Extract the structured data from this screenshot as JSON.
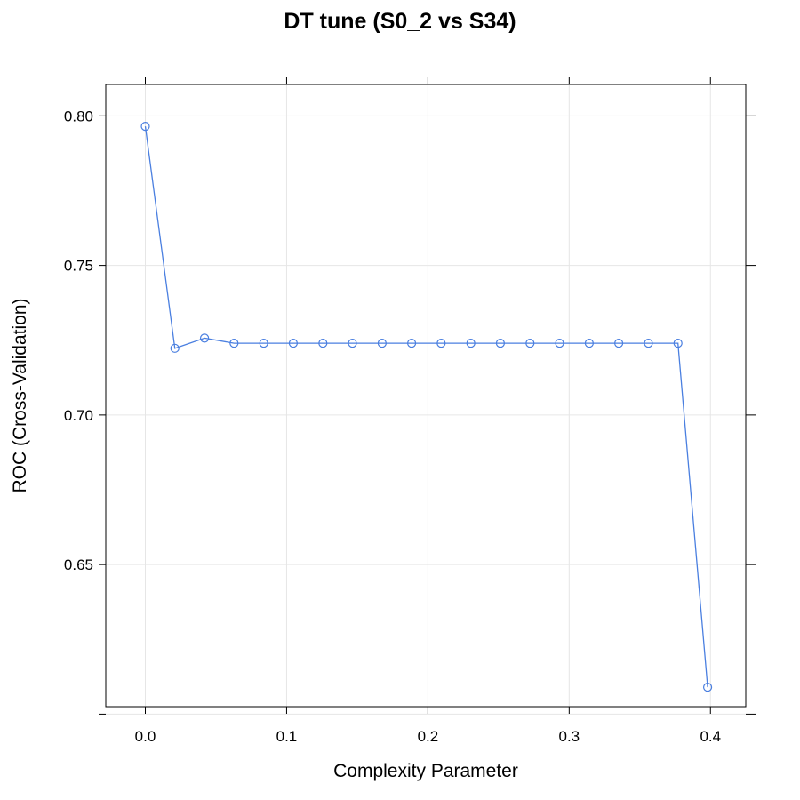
{
  "chart_data": {
    "type": "line",
    "title": "DT tune (S0_2 vs S34)",
    "xlabel": "Complexity Parameter",
    "ylabel": "ROC (Cross-Validation)",
    "xlim": [
      -0.028,
      0.425
    ],
    "ylim": [
      0.6025,
      0.8105
    ],
    "x_ticks": [
      0.0,
      0.1,
      0.2,
      0.3,
      0.4
    ],
    "x_tick_labels": [
      "0.0",
      "0.1",
      "0.2",
      "0.3",
      "0.4"
    ],
    "y_ticks": [
      0.8,
      0.75,
      0.7,
      0.65,
      0.6
    ],
    "y_tick_labels": [
      "0.80",
      "0.75",
      "0.70",
      "0.65",
      ""
    ],
    "grid": true,
    "series": [
      {
        "color": "#4a7fe0",
        "marker": "open-circle",
        "x": [
          0.0,
          0.0209,
          0.0419,
          0.0628,
          0.0838,
          0.1047,
          0.1257,
          0.1466,
          0.1676,
          0.1885,
          0.2094,
          0.2304,
          0.2513,
          0.2723,
          0.2932,
          0.3142,
          0.3351,
          0.3561,
          0.377,
          0.398
        ],
        "y": [
          0.7965,
          0.7223,
          0.7257,
          0.724,
          0.724,
          0.724,
          0.724,
          0.724,
          0.724,
          0.724,
          0.724,
          0.724,
          0.724,
          0.724,
          0.724,
          0.724,
          0.724,
          0.724,
          0.724,
          0.609
        ]
      }
    ]
  }
}
